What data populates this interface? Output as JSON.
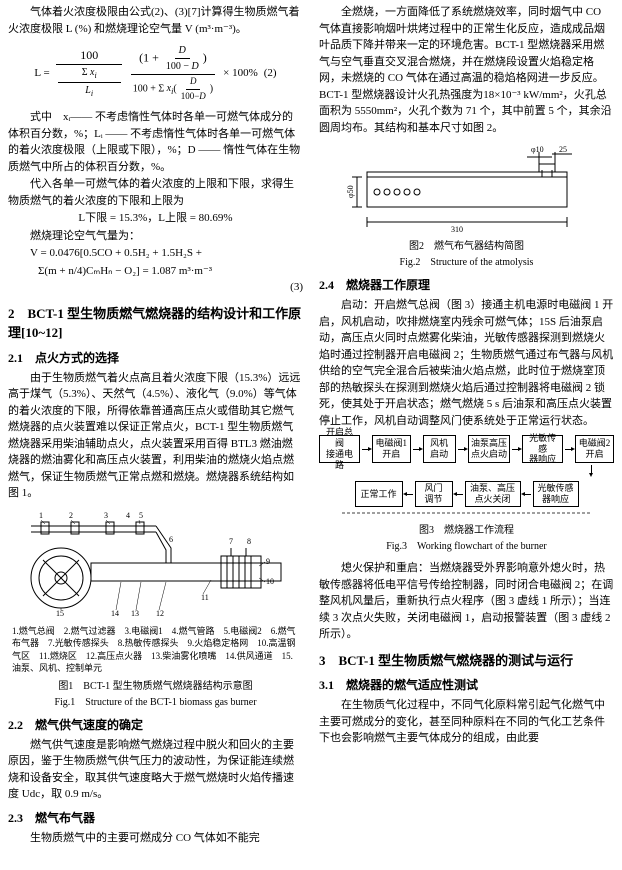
{
  "leftCol": {
    "para1": "气体着火浓度极限由公式(2)、(3)[7]计算得生物质燃气着火浓度极限 L (%) 和燃烧理论空气量 V (m³·m⁻³)。",
    "formula2_lhs": "L =",
    "formula2_top": "100",
    "formula2_bot_a": "100 + ",
    "formula2_paren_num": "1 + ",
    "formula2_d": "D",
    "formula2_100d": "100 − D",
    "formula2_mult": "× 100%",
    "formula2_no": "(2)",
    "formula2_sum1": "Σ xᵢ / Lᵢ",
    "formula2_sum2": "Σ xᵢ (",
    "para2": "式中　xᵢ—— 不考虑惰性气体时各单一可燃气体成分的体积百分数，%；Lᵢ —— 不考虑惰性气体时各单一可燃气体的着火浓度极限（上限或下限），%；D —— 惰性气体在生物质燃气中所占的体积百分数，%。",
    "para3": "代入各单一可燃气体的着火浓度的上限和下限，求得生物质燃气的着火浓度的下限和上限为",
    "eq_L": "L下限 = 15.3%，L上限 = 80.69%",
    "para4": "燃烧理论空气气量为：",
    "eq_V1": "V = 0.0476[0.5CO + 0.5H₂ + 1.5H₂S +",
    "eq_V2": "Σ(m + n/4)CₘHₙ − O₂] = 1.087 m³·m⁻³",
    "eq_V_no": "(3)",
    "sec2": "2　BCT-1 型生物质燃气燃烧器的结构设计和工作原理[10~12]",
    "sec21": "2.1　点火方式的选择",
    "p21": "由于生物质燃气着火点高且着火浓度下限（15.3%）远远高于煤气（5.3%）、天然气（4.5%）、液化气（9.0%）等气体的着火浓度的下限，所得依靠普通高压点火或借助其它燃气燃烧器的点火装置难以保证正常点火，BCT-1 型生物质燃气燃烧器采用柴油辅助点火，点火装置采用百得 BTL3 燃油燃烧器的燃油雾化和高压点火装置，利用柴油的燃烧火焰点燃燃气，保证生物质燃气正常点燃和燃烧。燃烧器系统结构如图 1。",
    "fig1_legend": "1.燃气总阀　2.燃气过滤器　3.电磁阀1　4.燃气管路　5.电磁阀2　6.燃气布气器　7.光敏传感探头　8.热敏传感探头　9.火焰稳定格网　10.高温钢气区　11.燃烧区　12.高压点火器　13.柴油雾化喷嘴　14.供风通道　15.油泵、风机、控制单元",
    "fig1_cap": "图1　BCT-1 型生物质燃气燃烧器结构示意图",
    "fig1_capEn": "Fig.1　Structure of the BCT-1 biomass gas burner",
    "sec22": "2.2　燃气供气速度的确定",
    "p22": "燃气供气速度是影响燃气燃烧过程中脱火和回火的主要原因，鉴于生物质燃气供气压力的波动性，为保证能连续燃烧和设备安全，取其供气速度略大于燃气燃烧时火焰传播速度 Udc，取 0.9 m/s。",
    "sec23": "2.3　燃气布气器",
    "p23": "生物质燃气中的主要可燃成分 CO 气体如不能完"
  },
  "rightCol": {
    "para_top": "全燃烧，一方面降低了系统燃烧效率，同时烟气中 CO 气体直接影响烟叶烘烤过程中的正常生化反应，造成成品烟叶品质下降并带来一定的环境危害。BCT-1 型燃烧器采用燃气与空气垂直交叉混合燃烧，并在燃烧段设置火焰稳定格网，未燃烧的 CO 气体在通过高温的稳焰格网进一步反应。BCT-1 型燃烧器设计火孔热强度为18×10⁻³ kW/mm²，火孔总面积为 5550mm²，火孔个数为 71 个，其中前置 5 个，其余沿圆周均布。其结构和基本尺寸如图 2。",
    "fig2_cap": "图2　燃气布气器结构简图",
    "fig2_capEn": "Fig.2　Structure of the atmolysis",
    "dim_phi10": "φ10",
    "dim_25": "25",
    "dim_phi50": "φ50",
    "dim_310": "310",
    "sec24": "2.4　燃烧器工作原理",
    "p24": "启动：开启燃气总阀（图 3）接通主机电源时电磁阀 1 开启，风机启动，吹排燃烧室内残余可燃气体；15S 后油泵启动，高压点火同时点燃雾化柴油，光敏传感器探测到燃烧火焰时通过控制器开启电磁阀 2；生物质燃气通过布气器与风机供给的空气完全混合后被柴油火焰点燃，此时位于燃烧室顶部的热敏探头在探测到燃烧火焰后通过控制器将电磁阀 2 锁死，使其处于开启状态；燃气燃烧 5 s 后油泵和高压点火装置停止工作，风机自动调整风门使系统处于正常运行状态。",
    "flow": {
      "n1": "开启总阀\n接通电路",
      "n2": "电磁阀1\n开启",
      "n3": "风机\n启动",
      "n4": "油泵高压\n点火启动",
      "n5": "光敏传感\n器响应",
      "n6": "电磁阀2\n开启",
      "n7": "正常工作",
      "n8": "风门\n调节",
      "n9": "油泵、高压\n点火关闭",
      "n10": "光敏传感\n器响应"
    },
    "fig3_cap": "图3　燃烧器工作流程",
    "fig3_capEn": "Fig.3　Working flowchart of the burner",
    "p_after3": "熄火保护和重启：当燃烧器受外界影响意外熄火时，热敏传感器将低电平信号传给控制器，同时闭合电磁阀 2；在调整风机风量后，重新执行点火程序（图 3 虚线 1 所示）；当连续 3 次点火失败，关闭电磁阀 1，启动报警装置（图 3 虚线 2 所示）。",
    "sec3": "3　BCT-1 型生物质燃气燃烧器的测试与运行",
    "sec31": "3.1　燃烧器的燃气适应性测试",
    "p31": "在生物质气化过程中，不同气化原料常引起气化燃气中主要可燃成分的变化，甚至同种原料在不同的气化工艺条件下也会影响燃气主要气体成分的组成，由此要"
  },
  "colors": {
    "text": "#000000",
    "bg": "#ffffff",
    "line": "#000000"
  }
}
